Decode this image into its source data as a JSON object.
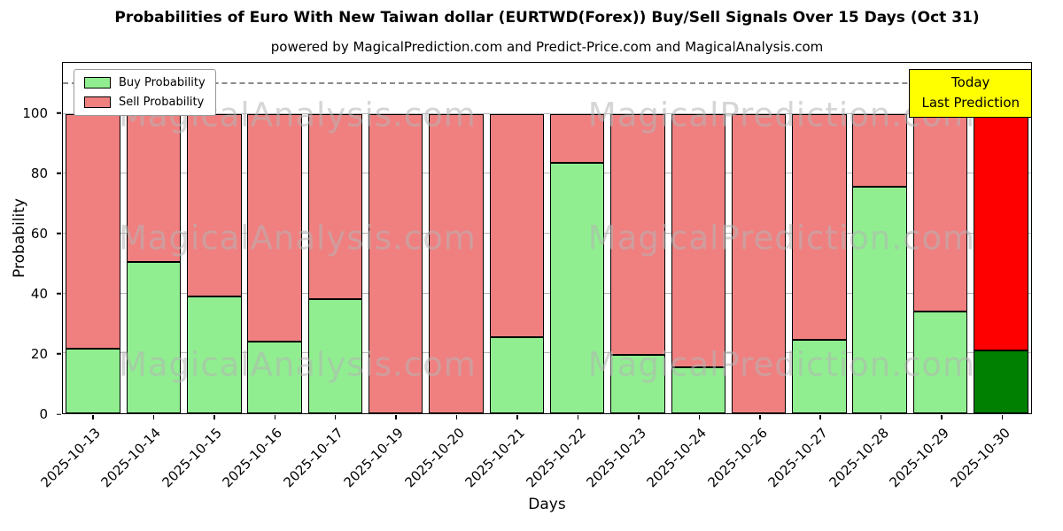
{
  "figure": {
    "title": "Probabilities of Euro With New Taiwan dollar (EURTWD(Forex)) Buy/Sell Signals Over 15 Days (Oct 31)",
    "subtitle": "powered by MagicalPrediction.com and Predict-Price.com and MagicalAnalysis.com"
  },
  "legend": {
    "items": [
      {
        "label": "Buy Probability",
        "color": "#90ee90"
      },
      {
        "label": "Sell Probability",
        "color": "#f08080"
      }
    ]
  },
  "annotation": {
    "line1": "Today",
    "line2": "Last Prediction",
    "bg_color": "#ffff00"
  },
  "watermarks": {
    "left": "MagicalAnalysis.com",
    "right": "MagicalPrediction.com"
  },
  "chart_data": {
    "type": "bar",
    "stacked": true,
    "title": "Probabilities of Euro With New Taiwan dollar (EURTWD(Forex)) Buy/Sell Signals Over 15 Days (Oct 31)",
    "subtitle": "powered by MagicalPrediction.com and Predict-Price.com and MagicalAnalysis.com",
    "xlabel": "Days",
    "ylabel": "Probability",
    "categories": [
      "2025-10-13",
      "2025-10-14",
      "2025-10-15",
      "2025-10-16",
      "2025-10-17",
      "2025-10-19",
      "2025-10-20",
      "2025-10-21",
      "2025-10-22",
      "2025-10-23",
      "2025-10-24",
      "2025-10-26",
      "2025-10-27",
      "2025-10-28",
      "2025-10-29",
      "2025-10-30"
    ],
    "series": [
      {
        "name": "Buy Probability",
        "color": "#90ee90",
        "values": [
          21.5,
          50.5,
          39,
          24,
          38,
          0,
          0,
          25.5,
          83.5,
          19.5,
          15.5,
          0,
          24.5,
          75.5,
          34,
          21
        ]
      },
      {
        "name": "Sell Probability",
        "color": "#f08080",
        "values": [
          78.5,
          49.5,
          61,
          76,
          62,
          100,
          100,
          74.5,
          16.5,
          80.5,
          84.5,
          100,
          75.5,
          24.5,
          66,
          79
        ]
      }
    ],
    "today_index": 15,
    "today_colors": {
      "buy": "#008000",
      "sell": "#ff0000"
    },
    "ylim": [
      0,
      117
    ],
    "yticks": [
      0,
      20,
      40,
      60,
      80,
      100
    ],
    "dashed_line_y": 110,
    "grid": "horizontal",
    "legend_position": "upper left"
  }
}
